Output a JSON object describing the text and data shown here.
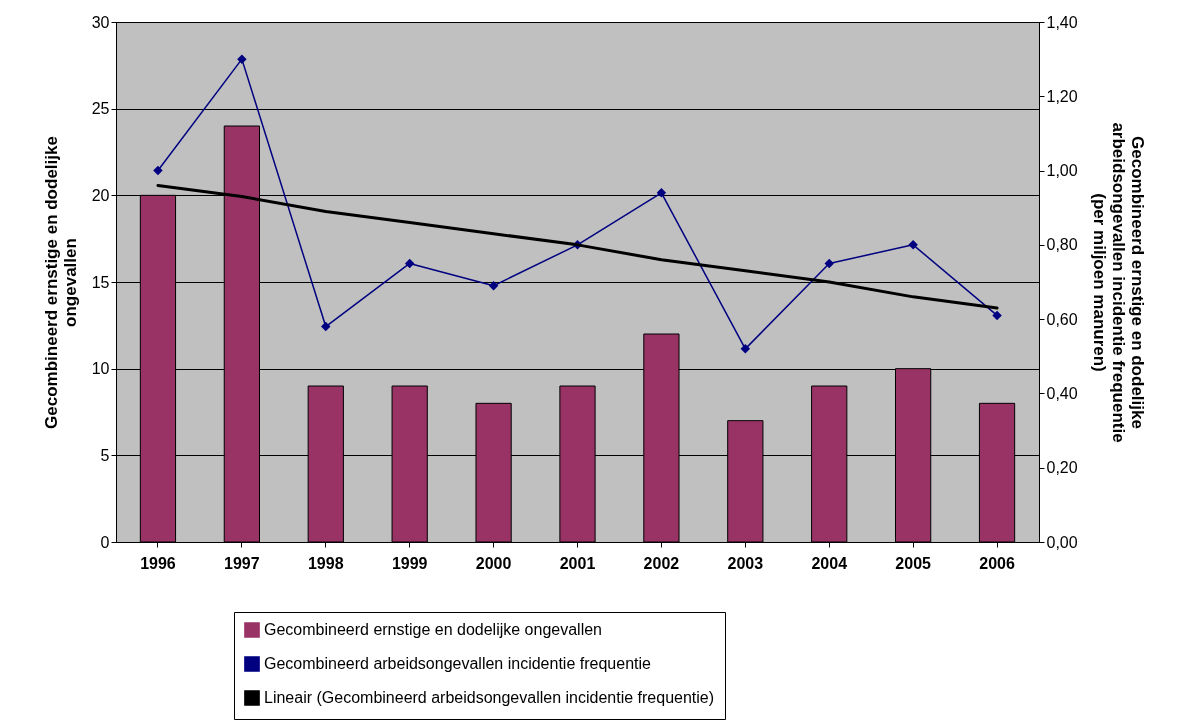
{
  "chart_data": {
    "type": "bar",
    "categories": [
      "1996",
      "1997",
      "1998",
      "1999",
      "2000",
      "2001",
      "2002",
      "2003",
      "2004",
      "2005",
      "2006"
    ],
    "ylabel": "Gecombineerd ernstige en dodelijke ongevallen",
    "y2label": "Gecombineerd ernstige en dodelijke arbeidsongevallen incidentie frequentie (per miljoen manuren)",
    "ylim": [
      0,
      30
    ],
    "yticks": [
      0,
      5,
      10,
      15,
      20,
      25,
      30
    ],
    "y2lim": [
      0,
      1.4
    ],
    "y2ticks": [
      {
        "value": 0,
        "label": "0,00"
      },
      {
        "value": 0.2,
        "label": "0,20"
      },
      {
        "value": 0.4,
        "label": "0,40"
      },
      {
        "value": 0.6,
        "label": "0,60"
      },
      {
        "value": 0.8,
        "label": "0,80"
      },
      {
        "value": 1.0,
        "label": "1,00"
      },
      {
        "value": 1.2,
        "label": "1,20"
      },
      {
        "value": 1.4,
        "label": "1,40"
      }
    ],
    "grid": "y",
    "legend": "bottom",
    "series": [
      {
        "name": "Gecombineerd ernstige en dodelijke ongevallen",
        "color": "#993366",
        "values": [
          20,
          24,
          9,
          9,
          8,
          9,
          12,
          7,
          9,
          10,
          8
        ]
      },
      {
        "name": "Gecombineerd arbeidsongevallen incidentie frequentie",
        "type": "line",
        "axis": "y2",
        "color": "#000080",
        "marker": "diamond",
        "values": [
          1.0,
          1.3,
          0.58,
          0.75,
          0.69,
          0.8,
          0.94,
          0.52,
          0.75,
          0.8,
          0.61
        ]
      },
      {
        "name": "Lineair (Gecombineerd arbeidsongevallen incidentie frequentie)",
        "type": "line",
        "axis": "y2",
        "color": "#000000",
        "marker": "none",
        "values": [
          0.96,
          0.93,
          0.89,
          0.86,
          0.83,
          0.8,
          0.76,
          0.73,
          0.7,
          0.66,
          0.63
        ]
      }
    ]
  }
}
